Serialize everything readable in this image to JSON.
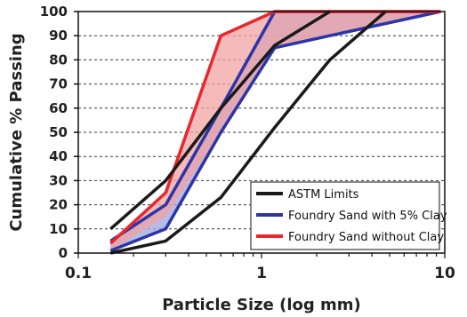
{
  "chart_data": {
    "type": "line",
    "xlabel": "Particle Size (log mm)",
    "ylabel": "Cumulative % Passing",
    "x_scale": "log",
    "xlim": [
      0.1,
      10
    ],
    "ylim": [
      0,
      100
    ],
    "x_ticks": [
      "0.1",
      "1",
      "10"
    ],
    "y_ticks": [
      "0",
      "10",
      "20",
      "30",
      "40",
      "50",
      "60",
      "70",
      "80",
      "90",
      "100"
    ],
    "grid": "horizontal dashed",
    "legend_position": "bottom-right",
    "series": [
      {
        "name": "ASTM Limits",
        "color": "#1a1a1a",
        "lines": [
          {
            "x": [
              0.15,
              0.3,
              0.6,
              1.18,
              2.36
            ],
            "y": [
              10,
              30,
              60,
              86,
              100
            ]
          },
          {
            "x": [
              0.15,
              0.3,
              0.6,
              1.18,
              2.36,
              4.75
            ],
            "y": [
              0,
              5,
              23,
              52,
              80,
              100
            ]
          }
        ]
      },
      {
        "name": "Foundry Sand with 5% Clay",
        "color": "#2b35a5",
        "fill": "#9ba6e2",
        "x": [
          0.15,
          0.3,
          0.6,
          1.18,
          2.36,
          9.5
        ],
        "y": [
          5,
          20,
          60,
          100,
          100,
          100
        ],
        "y_lower": [
          1,
          10,
          50,
          85,
          90,
          100
        ]
      },
      {
        "name": "Foundry Sand without Clay",
        "color": "#e8272e",
        "fill": "#f1a3a3",
        "x": [
          0.15,
          0.3,
          0.6,
          1.18,
          2.36,
          9.5
        ],
        "y": [
          4,
          25,
          90,
          100,
          100,
          100
        ],
        "y_lower": [
          1,
          15,
          50,
          85,
          90,
          100
        ]
      }
    ]
  }
}
